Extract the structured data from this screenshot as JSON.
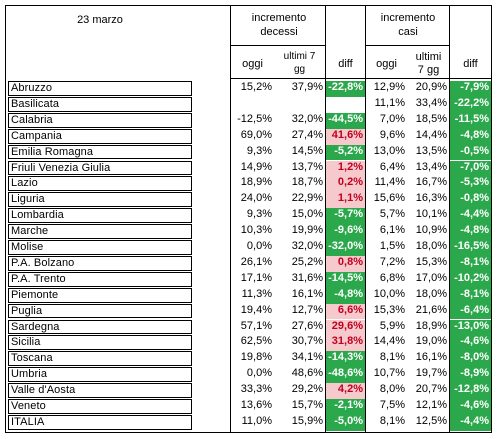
{
  "header": {
    "date": "23 marzo",
    "deaths_group": [
      "incremento",
      "decessi"
    ],
    "cases_group": [
      "incremento",
      "casi"
    ],
    "col_today": "oggi",
    "col_last7": [
      "ultimi 7",
      "gg"
    ],
    "col_diff": "diff",
    "col_today_cases": "oggi",
    "col_last7_cases": [
      "ultimi",
      "7 gg"
    ],
    "col_diff_cases": "diff"
  },
  "colors": {
    "green": "#2aa84b",
    "pink": "#f6c9cd",
    "red_text": "#c0001e"
  },
  "rows": [
    {
      "region": "Abruzzo",
      "d_today": "15,2%",
      "d_7": "37,9%",
      "d_diff": "-22,8%",
      "d_style": "g",
      "c_today": "12,9%",
      "c_7": "20,9%",
      "c_diff": "-7,9%"
    },
    {
      "region": "Basilicata",
      "d_today": "",
      "d_7": "",
      "d_diff": "",
      "d_style": "",
      "c_today": "11,1%",
      "c_7": "33,4%",
      "c_diff": "-22,2%"
    },
    {
      "region": "Calabria",
      "d_today": "-12,5%",
      "d_7": "32,0%",
      "d_diff": "-44,5%",
      "d_style": "g",
      "c_today": "7,0%",
      "c_7": "18,5%",
      "c_diff": "-11,5%"
    },
    {
      "region": "Campania",
      "d_today": "69,0%",
      "d_7": "27,4%",
      "d_diff": "41,6%",
      "d_style": "p",
      "c_today": "9,6%",
      "c_7": "14,4%",
      "c_diff": "-4,8%"
    },
    {
      "region": "Emilia Romagna",
      "d_today": "9,3%",
      "d_7": "14,5%",
      "d_diff": "-5,2%",
      "d_style": "g",
      "c_today": "13,0%",
      "c_7": "13,5%",
      "c_diff": "-0,5%"
    },
    {
      "region": "Friuli Venezia Giulia",
      "d_today": "14,9%",
      "d_7": "13,7%",
      "d_diff": "1,2%",
      "d_style": "p",
      "c_today": "6,4%",
      "c_7": "13,4%",
      "c_diff": "-7,0%"
    },
    {
      "region": "Lazio",
      "d_today": "18,9%",
      "d_7": "18,7%",
      "d_diff": "0,2%",
      "d_style": "p",
      "c_today": "11,4%",
      "c_7": "16,7%",
      "c_diff": "-5,3%"
    },
    {
      "region": "Liguria",
      "d_today": "24,0%",
      "d_7": "22,9%",
      "d_diff": "1,1%",
      "d_style": "p",
      "c_today": "15,6%",
      "c_7": "16,3%",
      "c_diff": "-0,8%"
    },
    {
      "region": "Lombardia",
      "d_today": "9,3%",
      "d_7": "15,0%",
      "d_diff": "-5,7%",
      "d_style": "g",
      "c_today": "5,7%",
      "c_7": "10,1%",
      "c_diff": "-4,4%"
    },
    {
      "region": "Marche",
      "d_today": "10,3%",
      "d_7": "19,9%",
      "d_diff": "-9,6%",
      "d_style": "g",
      "c_today": "6,1%",
      "c_7": "10,9%",
      "c_diff": "-4,8%"
    },
    {
      "region": "Molise",
      "d_today": "0,0%",
      "d_7": "32,0%",
      "d_diff": "-32,0%",
      "d_style": "g",
      "c_today": "1,5%",
      "c_7": "18,0%",
      "c_diff": "-16,5%"
    },
    {
      "region": "P.A. Bolzano",
      "d_today": "26,1%",
      "d_7": "25,2%",
      "d_diff": "0,8%",
      "d_style": "p",
      "c_today": "7,2%",
      "c_7": "15,3%",
      "c_diff": "-8,1%"
    },
    {
      "region": "P.A. Trento",
      "d_today": "17,1%",
      "d_7": "31,6%",
      "d_diff": "-14,5%",
      "d_style": "g",
      "c_today": "6,8%",
      "c_7": "17,0%",
      "c_diff": "-10,2%"
    },
    {
      "region": "Piemonte",
      "d_today": "11,3%",
      "d_7": "16,1%",
      "d_diff": "-4,8%",
      "d_style": "g",
      "c_today": "10,0%",
      "c_7": "18,0%",
      "c_diff": "-8,1%"
    },
    {
      "region": "Puglia",
      "d_today": "19,4%",
      "d_7": "12,7%",
      "d_diff": "6,6%",
      "d_style": "p",
      "c_today": "15,3%",
      "c_7": "21,6%",
      "c_diff": "-6,4%"
    },
    {
      "region": "Sardegna",
      "d_today": "57,1%",
      "d_7": "27,6%",
      "d_diff": "29,6%",
      "d_style": "p",
      "c_today": "5,9%",
      "c_7": "18,9%",
      "c_diff": "-13,0%"
    },
    {
      "region": "Sicilia",
      "d_today": "62,5%",
      "d_7": "30,7%",
      "d_diff": "31,8%",
      "d_style": "p",
      "c_today": "14,4%",
      "c_7": "19,0%",
      "c_diff": "-4,6%"
    },
    {
      "region": "Toscana",
      "d_today": "19,8%",
      "d_7": "34,1%",
      "d_diff": "-14,3%",
      "d_style": "g",
      "c_today": "8,1%",
      "c_7": "16,1%",
      "c_diff": "-8,0%"
    },
    {
      "region": "Umbria",
      "d_today": "0,0%",
      "d_7": "48,6%",
      "d_diff": "-48,6%",
      "d_style": "g",
      "c_today": "10,7%",
      "c_7": "19,7%",
      "c_diff": "-8,9%"
    },
    {
      "region": "Valle d'Aosta",
      "d_today": "33,3%",
      "d_7": "29,2%",
      "d_diff": "4,2%",
      "d_style": "p",
      "c_today": "8,0%",
      "c_7": "20,7%",
      "c_diff": "-12,8%"
    },
    {
      "region": "Veneto",
      "d_today": "13,6%",
      "d_7": "15,7%",
      "d_diff": "-2,1%",
      "d_style": "g",
      "c_today": "7,5%",
      "c_7": "12,1%",
      "c_diff": "-4,6%"
    },
    {
      "region": "ITALIA",
      "d_today": "11,0%",
      "d_7": "15,9%",
      "d_diff": "-5,0%",
      "d_style": "g",
      "c_today": "8,1%",
      "c_7": "12,5%",
      "c_diff": "-4,4%"
    }
  ]
}
